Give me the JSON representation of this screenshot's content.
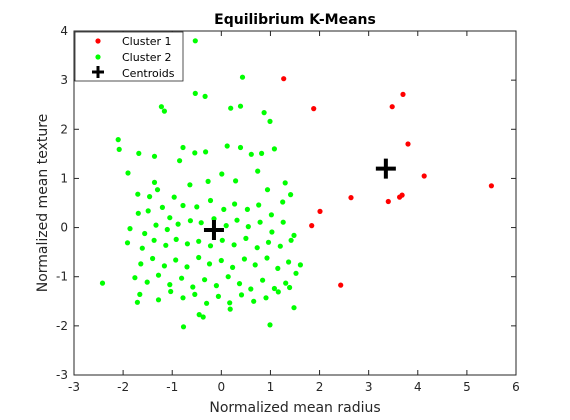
{
  "chart_data": {
    "type": "scatter",
    "title": "Equilibrium K-Means",
    "xlabel": "Normalized mean radius",
    "ylabel": "Normalized mean texture",
    "xlim": [
      -3,
      6
    ],
    "ylim": [
      -3,
      4
    ],
    "xticks": [
      -3,
      -2,
      -1,
      0,
      1,
      2,
      3,
      4,
      5,
      6
    ],
    "yticks": [
      -3,
      -2,
      -1,
      0,
      1,
      2,
      3,
      4
    ],
    "grid": false,
    "legend_position": "top-left",
    "series": [
      {
        "name": "Cluster 1",
        "color": "#ff0000",
        "marker": "dot",
        "points": [
          [
            1.27,
            3.03
          ],
          [
            1.88,
            2.42
          ],
          [
            3.48,
            2.46
          ],
          [
            3.7,
            2.71
          ],
          [
            3.8,
            1.7
          ],
          [
            4.13,
            1.05
          ],
          [
            3.4,
            0.53
          ],
          [
            3.63,
            0.62
          ],
          [
            3.68,
            0.66
          ],
          [
            2.64,
            0.61
          ],
          [
            2.01,
            0.33
          ],
          [
            1.84,
            0.04
          ],
          [
            2.43,
            -1.17
          ],
          [
            5.5,
            0.85
          ]
        ]
      },
      {
        "name": "Cluster 2",
        "color": "#00ff00",
        "marker": "dot",
        "points": [
          [
            -0.53,
            3.8
          ],
          [
            0.43,
            3.06
          ],
          [
            -1.16,
            2.37
          ],
          [
            -1.22,
            2.46
          ],
          [
            -0.53,
            2.73
          ],
          [
            -0.33,
            2.67
          ],
          [
            0.19,
            2.43
          ],
          [
            0.39,
            2.47
          ],
          [
            0.87,
            2.34
          ],
          [
            0.99,
            2.16
          ],
          [
            -2.1,
            1.79
          ],
          [
            -2.08,
            1.59
          ],
          [
            -1.9,
            1.11
          ],
          [
            -1.68,
            1.51
          ],
          [
            -1.36,
            1.45
          ],
          [
            -0.85,
            1.36
          ],
          [
            -0.78,
            1.63
          ],
          [
            -0.54,
            1.52
          ],
          [
            -0.32,
            1.54
          ],
          [
            0.12,
            1.66
          ],
          [
            0.39,
            1.63
          ],
          [
            0.61,
            1.49
          ],
          [
            0.82,
            1.51
          ],
          [
            1.08,
            1.6
          ],
          [
            -1.7,
            0.68
          ],
          [
            -1.36,
            0.92
          ],
          [
            -1.3,
            0.77
          ],
          [
            -1.46,
            0.63
          ],
          [
            -0.96,
            0.62
          ],
          [
            -0.64,
            0.87
          ],
          [
            -0.27,
            0.94
          ],
          [
            0.01,
            1.09
          ],
          [
            0.29,
            0.95
          ],
          [
            0.74,
            1.15
          ],
          [
            0.94,
            0.77
          ],
          [
            1.3,
            0.91
          ],
          [
            1.41,
            0.67
          ],
          [
            -1.69,
            0.29
          ],
          [
            -1.49,
            0.34
          ],
          [
            -1.2,
            0.41
          ],
          [
            -1.05,
            0.2
          ],
          [
            -0.78,
            0.45
          ],
          [
            -0.5,
            0.42
          ],
          [
            -0.22,
            0.55
          ],
          [
            0.05,
            0.37
          ],
          [
            0.27,
            0.48
          ],
          [
            0.53,
            0.37
          ],
          [
            0.76,
            0.46
          ],
          [
            1.02,
            0.26
          ],
          [
            1.25,
            0.52
          ],
          [
            -1.86,
            -0.02
          ],
          [
            -1.56,
            -0.12
          ],
          [
            -1.33,
            0.05
          ],
          [
            -1.1,
            -0.04
          ],
          [
            -0.88,
            0.07
          ],
          [
            -0.63,
            0.14
          ],
          [
            -0.41,
            0.1
          ],
          [
            -0.15,
            0.18
          ],
          [
            0.1,
            0.04
          ],
          [
            0.32,
            0.15
          ],
          [
            0.55,
            0.02
          ],
          [
            0.79,
            0.11
          ],
          [
            1.03,
            -0.09
          ],
          [
            1.26,
            0.11
          ],
          [
            1.48,
            -0.16
          ],
          [
            -1.91,
            -0.31
          ],
          [
            -1.61,
            -0.42
          ],
          [
            -1.37,
            -0.26
          ],
          [
            -1.13,
            -0.36
          ],
          [
            -0.92,
            -0.24
          ],
          [
            -0.69,
            -0.33
          ],
          [
            -0.46,
            -0.28
          ],
          [
            -0.22,
            -0.37
          ],
          [
            0.02,
            -0.26
          ],
          [
            0.26,
            -0.35
          ],
          [
            0.5,
            -0.22
          ],
          [
            0.73,
            -0.41
          ],
          [
            0.96,
            -0.3
          ],
          [
            1.2,
            -0.38
          ],
          [
            1.42,
            -0.26
          ],
          [
            -1.64,
            -0.74
          ],
          [
            -1.4,
            -0.63
          ],
          [
            -1.16,
            -0.78
          ],
          [
            -0.93,
            -0.66
          ],
          [
            -0.7,
            -0.8
          ],
          [
            -0.46,
            -0.61
          ],
          [
            -0.24,
            -0.74
          ],
          [
            0.0,
            -0.67
          ],
          [
            0.23,
            -0.81
          ],
          [
            0.47,
            -0.64
          ],
          [
            0.69,
            -0.76
          ],
          [
            0.93,
            -0.62
          ],
          [
            1.15,
            -0.83
          ],
          [
            1.37,
            -0.7
          ],
          [
            1.61,
            -0.76
          ],
          [
            -1.76,
            -1.02
          ],
          [
            -1.51,
            -1.11
          ],
          [
            -1.28,
            -0.97
          ],
          [
            -1.05,
            -1.16
          ],
          [
            -0.81,
            -1.03
          ],
          [
            -0.58,
            -1.21
          ],
          [
            -0.34,
            -1.06
          ],
          [
            -0.1,
            -1.18
          ],
          [
            0.14,
            -1.0
          ],
          [
            0.37,
            -1.14
          ],
          [
            0.6,
            -1.25
          ],
          [
            0.84,
            -1.07
          ],
          [
            1.08,
            -1.24
          ],
          [
            1.31,
            -1.13
          ],
          [
            1.52,
            -0.93
          ],
          [
            -2.42,
            -1.13
          ],
          [
            -1.66,
            -1.36
          ],
          [
            -1.28,
            -1.47
          ],
          [
            -1.03,
            -1.3
          ],
          [
            -0.78,
            -1.43
          ],
          [
            -0.54,
            -1.36
          ],
          [
            -0.3,
            -1.54
          ],
          [
            -0.06,
            -1.4
          ],
          [
            0.17,
            -1.53
          ],
          [
            0.41,
            -1.37
          ],
          [
            0.66,
            -1.5
          ],
          [
            0.91,
            -1.43
          ],
          [
            1.16,
            -1.31
          ],
          [
            1.39,
            -1.22
          ],
          [
            -1.71,
            -1.52
          ],
          [
            -0.45,
            -1.77
          ],
          [
            -0.37,
            -1.82
          ],
          [
            -0.77,
            -2.02
          ],
          [
            0.18,
            -1.66
          ],
          [
            0.99,
            -1.98
          ],
          [
            1.48,
            -1.63
          ]
        ]
      }
    ],
    "centroids": {
      "name": "Centroids",
      "color": "#000000",
      "marker": "plus",
      "points": [
        [
          3.35,
          1.2
        ],
        [
          -0.15,
          -0.05
        ]
      ]
    }
  }
}
